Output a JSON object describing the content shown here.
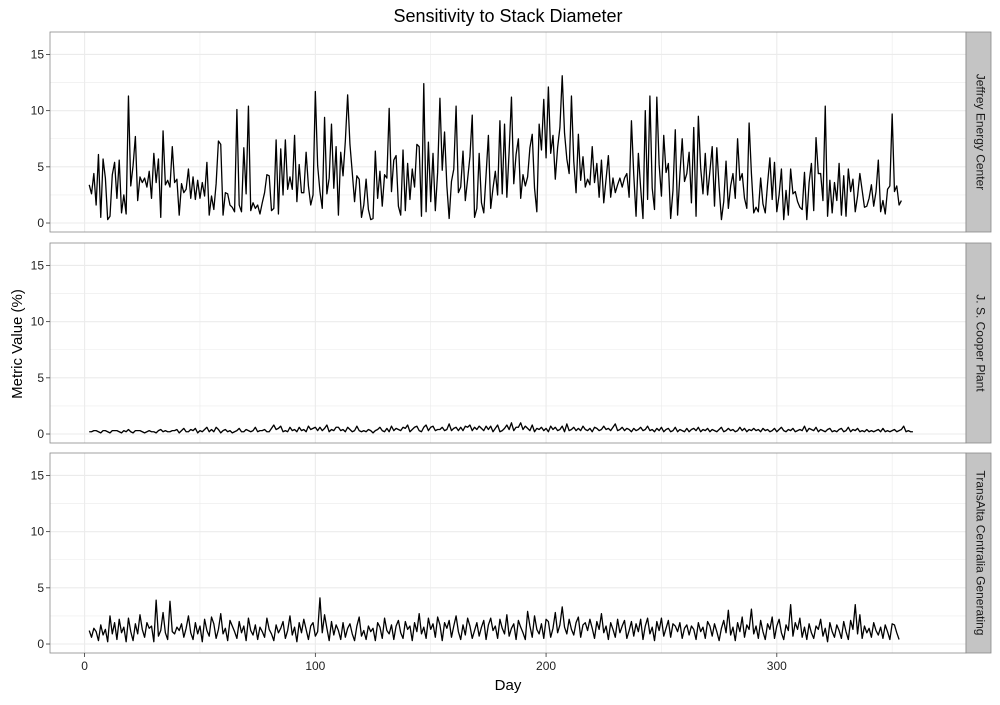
{
  "chart_data": {
    "type": "line",
    "facet": "rows",
    "title": "Sensitivity to Stack Diameter",
    "xlabel": "Day",
    "ylabel": "Metric Value (%)",
    "xlim": [
      -15,
      382
    ],
    "ylim": [
      -0.8,
      17.0
    ],
    "x_ticks": [
      0,
      100,
      200,
      300
    ],
    "y_ticks": [
      0,
      5,
      10,
      15
    ],
    "grid": true,
    "line_color": "#000000",
    "grid_color": "#ebebeb",
    "strip_fill": "#c4c4c4",
    "x_start": 2,
    "x_step": 1,
    "panels": [
      {
        "name": "Jeffrey Energy Center",
        "values": [
          3.4,
          2.6,
          4.4,
          1.6,
          6.1,
          0.5,
          5.7,
          4.0,
          0.3,
          0.6,
          4.3,
          5.4,
          2.2,
          5.6,
          0.9,
          2.5,
          0.8,
          11.3,
          3.3,
          5.1,
          7.7,
          2.0,
          4.1,
          3.6,
          4.0,
          3.2,
          4.6,
          2.2,
          6.2,
          3.6,
          5.7,
          0.5,
          8.2,
          3.4,
          3.8,
          3.2,
          6.8,
          3.6,
          3.9,
          0.7,
          3.5,
          2.7,
          3.0,
          4.8,
          2.2,
          4.1,
          2.1,
          3.8,
          2.2,
          3.6,
          2.4,
          5.4,
          0.7,
          2.4,
          1.2,
          3.5,
          7.3,
          7.0,
          0.7,
          2.7,
          2.6,
          1.6,
          1.4,
          1.0,
          10.1,
          1.6,
          1.0,
          6.7,
          2.6,
          10.4,
          1.1,
          1.8,
          1.3,
          1.6,
          0.8,
          1.8,
          2.7,
          4.3,
          4.2,
          1.1,
          1.3,
          7.4,
          0.8,
          6.6,
          2.5,
          7.4,
          3.0,
          4.1,
          3.0,
          7.8,
          1.9,
          5.2,
          2.7,
          2.7,
          6.3,
          3.3,
          1.6,
          2.5,
          11.7,
          5.1,
          2.8,
          1.3,
          9.4,
          2.6,
          4.0,
          8.8,
          3.1,
          6.8,
          0.7,
          6.3,
          4.2,
          7.3,
          11.4,
          7.0,
          4.5,
          1.9,
          4.2,
          3.9,
          0.5,
          1.6,
          3.9,
          1.2,
          0.3,
          0.4,
          6.4,
          2.2,
          4.6,
          1.5,
          4.3,
          4.0,
          10.2,
          2.8,
          5.6,
          6.0,
          1.5,
          0.7,
          6.5,
          1.1,
          5.3,
          2.1,
          4.8,
          3.2,
          7.0,
          6.8,
          0.6,
          12.4,
          1.0,
          7.2,
          1.9,
          6.2,
          1.1,
          4.5,
          11.1,
          4.7,
          8.1,
          3.3,
          0.4,
          3.7,
          4.8,
          10.4,
          2.7,
          3.2,
          6.4,
          2.0,
          3.9,
          5.9,
          9.6,
          0.5,
          1.3,
          6.2,
          1.8,
          0.9,
          4.3,
          7.8,
          1.3,
          3.1,
          4.6,
          2.5,
          9.1,
          2.6,
          8.8,
          2.3,
          6.4,
          11.2,
          3.5,
          6.1,
          7.5,
          2.2,
          4.3,
          3.3,
          4.1,
          6.7,
          7.9,
          3.1,
          1.0,
          8.8,
          6.5,
          11.0,
          5.8,
          12.1,
          6.2,
          7.8,
          3.9,
          6.7,
          8.5,
          13.1,
          8.0,
          5.7,
          4.4,
          11.3,
          5.5,
          2.7,
          7.9,
          3.8,
          5.9,
          3.2,
          3.9,
          3.4,
          6.8,
          3.6,
          5.3,
          2.3,
          5.6,
          1.8,
          3.9,
          6.0,
          2.3,
          4.0,
          2.7,
          3.4,
          4.0,
          3.2,
          4.0,
          4.4,
          2.3,
          9.1,
          4.3,
          0.6,
          6.2,
          3.1,
          0.4,
          10.0,
          2.1,
          11.3,
          3.1,
          1.2,
          11.2,
          5.2,
          2.4,
          7.8,
          4.5,
          5.3,
          0.4,
          2.9,
          8.3,
          0.7,
          4.3,
          7.5,
          3.7,
          4.4,
          6.3,
          1.8,
          8.5,
          0.6,
          9.5,
          4.9,
          2.6,
          6.2,
          2.5,
          4.6,
          6.8,
          1.5,
          6.7,
          3.2,
          0.3,
          1.9,
          5.5,
          1.3,
          3.3,
          4.4,
          2.2,
          7.5,
          3.8,
          4.4,
          2.2,
          1.3,
          8.9,
          4.4,
          0.9,
          1.4,
          1.0,
          4.0,
          1.7,
          0.9,
          3.5,
          5.8,
          2.1,
          5.4,
          1.0,
          2.5,
          4.8,
          0.3,
          2.9,
          0.7,
          4.8,
          2.6,
          2.8,
          1.9,
          1.4,
          1.2,
          4.5,
          0.3,
          3.6,
          5.3,
          1.1,
          7.6,
          4.4,
          4.4,
          2.0,
          10.4,
          0.6,
          3.8,
          0.9,
          3.6,
          2.0,
          5.3,
          0.7,
          4.2,
          0.6,
          4.8,
          2.8,
          3.9,
          1.0,
          2.4,
          4.4,
          2.9,
          1.4,
          1.5,
          2.2,
          3.4,
          1.5,
          2.8,
          5.6,
          1.0,
          2.0,
          0.8,
          3.0,
          3.3,
          9.7,
          2.8,
          3.3,
          1.6,
          2.0
        ]
      },
      {
        "name": "J. S. Cooper Plant",
        "values": [
          0.2,
          0.2,
          0.3,
          0.3,
          0.2,
          0.1,
          0.3,
          0.3,
          0.2,
          0.1,
          0.3,
          0.3,
          0.3,
          0.2,
          0.1,
          0.3,
          0.2,
          0.4,
          0.2,
          0.1,
          0.3,
          0.3,
          0.3,
          0.2,
          0.1,
          0.2,
          0.3,
          0.2,
          0.2,
          0.1,
          0.3,
          0.4,
          0.2,
          0.3,
          0.2,
          0.2,
          0.3,
          0.3,
          0.4,
          0.1,
          0.3,
          0.5,
          0.2,
          0.2,
          0.4,
          0.3,
          0.5,
          0.1,
          0.3,
          0.2,
          0.4,
          0.6,
          0.2,
          0.4,
          0.2,
          0.6,
          0.4,
          0.1,
          0.3,
          0.4,
          0.2,
          0.3,
          0.1,
          0.2,
          0.3,
          0.5,
          0.2,
          0.2,
          0.4,
          0.3,
          0.2,
          0.3,
          0.6,
          0.2,
          0.3,
          0.3,
          0.4,
          0.2,
          0.2,
          0.5,
          0.8,
          0.4,
          0.5,
          0.7,
          0.2,
          0.3,
          0.2,
          0.6,
          0.3,
          0.4,
          0.2,
          0.6,
          0.3,
          0.4,
          0.2,
          0.7,
          0.4,
          0.5,
          0.6,
          0.3,
          0.6,
          0.3,
          0.5,
          0.8,
          0.2,
          0.4,
          0.3,
          0.6,
          0.6,
          0.3,
          0.4,
          0.2,
          0.6,
          0.4,
          0.2,
          0.3,
          0.7,
          0.3,
          0.2,
          0.3,
          0.2,
          0.4,
          0.3,
          0.1,
          0.3,
          0.4,
          0.6,
          0.3,
          0.2,
          0.5,
          0.2,
          0.7,
          0.3,
          0.5,
          0.4,
          0.3,
          0.6,
          0.5,
          0.8,
          0.2,
          0.4,
          0.6,
          0.7,
          0.3,
          0.2,
          0.6,
          0.8,
          0.3,
          0.6,
          0.7,
          0.3,
          0.4,
          0.4,
          0.6,
          0.3,
          0.4,
          0.9,
          0.3,
          0.5,
          0.6,
          0.3,
          0.6,
          0.3,
          0.7,
          0.6,
          0.8,
          0.3,
          0.6,
          0.4,
          0.7,
          0.5,
          0.3,
          0.7,
          0.4,
          0.7,
          0.2,
          0.5,
          0.8,
          0.2,
          0.3,
          0.5,
          0.8,
          0.4,
          1.0,
          0.3,
          0.6,
          0.6,
          1.0,
          0.4,
          0.7,
          0.5,
          0.3,
          0.8,
          0.2,
          0.5,
          0.4,
          0.6,
          0.3,
          0.5,
          0.2,
          0.7,
          0.4,
          0.6,
          0.3,
          0.4,
          0.7,
          0.2,
          0.9,
          0.3,
          0.4,
          0.6,
          0.3,
          0.5,
          0.3,
          0.7,
          0.4,
          0.3,
          0.5,
          0.2,
          0.6,
          0.5,
          0.3,
          0.4,
          0.7,
          0.4,
          0.5,
          0.3,
          0.6,
          0.9,
          0.3,
          0.4,
          0.6,
          0.3,
          0.5,
          0.4,
          0.2,
          0.5,
          0.3,
          0.4,
          0.6,
          0.3,
          0.4,
          0.7,
          0.3,
          0.4,
          0.2,
          0.5,
          0.3,
          0.6,
          0.2,
          0.4,
          0.5,
          0.2,
          0.3,
          0.6,
          0.2,
          0.4,
          0.3,
          0.2,
          0.5,
          0.2,
          0.4,
          0.5,
          0.3,
          0.6,
          0.2,
          0.4,
          0.3,
          0.5,
          0.2,
          0.4,
          0.3,
          0.2,
          0.4,
          0.6,
          0.2,
          0.3,
          0.5,
          0.3,
          0.4,
          0.2,
          0.3,
          0.6,
          0.3,
          0.5,
          0.2,
          0.4,
          0.3,
          0.5,
          0.3,
          0.4,
          0.2,
          0.5,
          0.3,
          0.4,
          0.2,
          0.3,
          0.5,
          0.2,
          0.4,
          0.6,
          0.3,
          0.2,
          0.4,
          0.3,
          0.5,
          0.2,
          0.3,
          0.4,
          0.3,
          0.7,
          0.2,
          0.5,
          0.4,
          0.3,
          0.6,
          0.2,
          0.4,
          0.3,
          0.2,
          0.4,
          0.5,
          0.2,
          0.3,
          0.2,
          0.4,
          0.5,
          0.2,
          0.3,
          0.6,
          0.2,
          0.4,
          0.3,
          0.5,
          0.2,
          0.3,
          0.2,
          0.4,
          0.2,
          0.3,
          0.2,
          0.3,
          0.4,
          0.2,
          0.5,
          0.2,
          0.3,
          0.2,
          0.3,
          0.4,
          0.2,
          0.3,
          0.4,
          0.7,
          0.2,
          0.3,
          0.2,
          0.2
        ]
      },
      {
        "name": "TransAlta Centralia Generating",
        "values": [
          1.2,
          0.6,
          1.4,
          1.1,
          0.3,
          1.7,
          0.8,
          1.3,
          0.2,
          2.5,
          0.9,
          1.9,
          0.4,
          2.2,
          1.0,
          1.5,
          0.2,
          2.3,
          1.1,
          0.3,
          1.8,
          0.9,
          2.6,
          1.3,
          0.6,
          1.9,
          1.4,
          1.6,
          0.2,
          3.9,
          0.7,
          1.2,
          2.8,
          1.0,
          0.4,
          3.8,
          1.1,
          0.9,
          1.5,
          1.2,
          1.8,
          0.6,
          1.4,
          2.5,
          1.0,
          0.4,
          1.9,
          0.9,
          1.6,
          0.2,
          2.2,
          1.2,
          0.7,
          2.4,
          1.8,
          0.5,
          1.3,
          2.7,
          0.9,
          1.4,
          0.3,
          2.1,
          1.6,
          1.1,
          0.5,
          2.0,
          1.0,
          1.6,
          0.3,
          2.3,
          1.2,
          0.8,
          1.7,
          0.4,
          1.5,
          1.1,
          0.6,
          2.3,
          1.3,
          0.9,
          0.3,
          1.7,
          1.0,
          1.4,
          2.0,
          0.5,
          1.2,
          2.5,
          0.8,
          1.5,
          0.2,
          1.9,
          1.0,
          2.2,
          1.3,
          0.4,
          1.6,
          1.9,
          0.7,
          1.1,
          4.1,
          1.0,
          2.6,
          1.4,
          0.3,
          2.0,
          0.8,
          1.7,
          1.2,
          0.4,
          1.9,
          0.6,
          1.4,
          1.8,
          0.9,
          0.3,
          1.6,
          2.4,
          0.7,
          1.2,
          0.4,
          1.6,
          1.1,
          1.4,
          0.3,
          1.9,
          1.5,
          0.5,
          2.3,
          1.2,
          0.9,
          1.7,
          0.4,
          1.6,
          2.1,
          1.0,
          0.5,
          2.0,
          1.3,
          1.6,
          0.3,
          1.9,
          1.1,
          2.7,
          0.9,
          1.5,
          0.5,
          2.3,
          1.3,
          1.8,
          0.6,
          2.4,
          1.7,
          0.3,
          1.9,
          1.4,
          2.1,
          0.6,
          1.6,
          2.5,
          1.1,
          0.4,
          1.7,
          0.8,
          2.3,
          1.6,
          0.5,
          1.2,
          1.9,
          0.7,
          1.5,
          2.1,
          0.4,
          1.7,
          2.3,
          1.2,
          1.6,
          0.5,
          2.2,
          1.4,
          0.9,
          2.6,
          0.7,
          1.4,
          1.8,
          0.4,
          2.1,
          1.5,
          1.0,
          0.4,
          2.9,
          1.6,
          0.6,
          2.5,
          1.3,
          0.9,
          1.8,
          0.5,
          2.2,
          2.0,
          0.6,
          1.4,
          2.8,
          1.0,
          1.7,
          3.3,
          1.5,
          0.9,
          2.2,
          1.3,
          0.8,
          1.9,
          2.4,
          0.6,
          1.7,
          1.9,
          1.2,
          2.2,
          1.4,
          0.5,
          2.0,
          1.3,
          2.7,
          1.0,
          1.6,
          0.4,
          1.9,
          1.3,
          0.6,
          2.2,
          1.0,
          1.6,
          2.1,
          0.5,
          1.2,
          2.0,
          0.7,
          1.8,
          1.1,
          2.2,
          0.4,
          1.6,
          2.3,
          0.9,
          1.5,
          0.3,
          2.0,
          1.2,
          2.3,
          0.7,
          1.4,
          2.1,
          0.6,
          1.8,
          1.6,
          1.1,
          1.9,
          0.5,
          1.4,
          1.7,
          0.8,
          1.6,
          1.3,
          0.4,
          1.9,
          1.1,
          1.5,
          0.5,
          2.0,
          1.6,
          0.7,
          1.8,
          1.1,
          0.3,
          1.4,
          2.1,
          1.0,
          3.0,
          0.8,
          1.5,
          0.3,
          1.9,
          1.1,
          2.4,
          0.6,
          1.7,
          1.3,
          3.1,
          0.9,
          1.6,
          0.5,
          2.1,
          1.1,
          0.4,
          1.8,
          1.3,
          2.4,
          0.5,
          1.6,
          2.2,
          1.0,
          0.4,
          1.7,
          1.2,
          3.5,
          0.7,
          1.9,
          1.3,
          2.3,
          0.6,
          1.5,
          0.4,
          1.8,
          1.0,
          0.5,
          1.6,
          1.3,
          2.2,
          0.7,
          1.4,
          0.2,
          1.9,
          1.1,
          0.6,
          1.7,
          1.2,
          0.5,
          2.0,
          1.1,
          0.4,
          2.1,
          1.3,
          3.5,
          0.9,
          2.6,
          0.5,
          1.6,
          1.0,
          1.4,
          0.6,
          1.9,
          1.2,
          0.8,
          1.5,
          0.5,
          1.7,
          1.1,
          0.4,
          1.8,
          1.7,
          1.0,
          0.4
        ]
      }
    ]
  }
}
